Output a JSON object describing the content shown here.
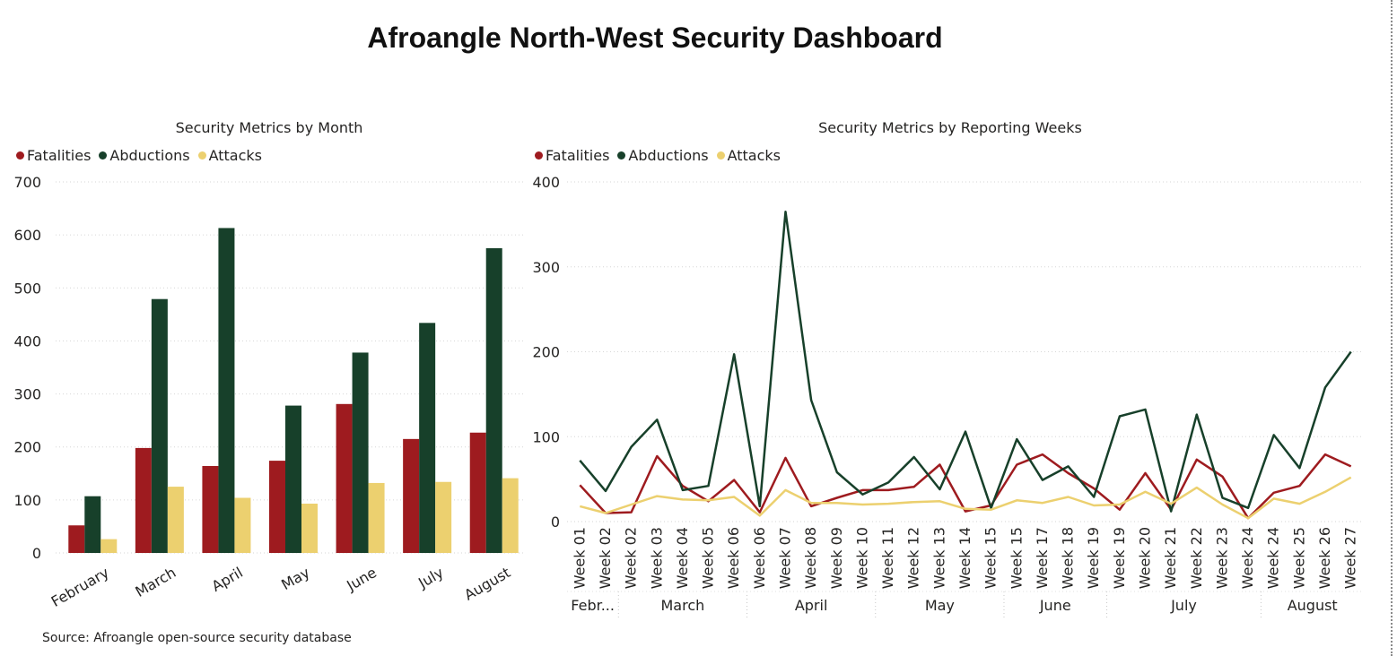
{
  "dashboard": {
    "title": "Afroangle North-West Security Dashboard",
    "source": "Source: Afroangle open-source security database"
  },
  "colors": {
    "fatalities": "#9e1b1f",
    "abductions": "#17402a",
    "attacks": "#ecd06f"
  },
  "chart_data": [
    {
      "type": "bar",
      "title": "Security Metrics by Month",
      "legend_position": "top-left",
      "grid": true,
      "ylim": [
        0,
        700
      ],
      "yticks": [
        0,
        100,
        200,
        300,
        400,
        500,
        600,
        700
      ],
      "categories": [
        "February",
        "March",
        "April",
        "May",
        "June",
        "July",
        "August"
      ],
      "series": [
        {
          "name": "Fatalities",
          "color": "#9e1b1f",
          "values": [
            52,
            198,
            164,
            174,
            281,
            215,
            227
          ]
        },
        {
          "name": "Abductions",
          "color": "#17402a",
          "values": [
            107,
            479,
            613,
            278,
            378,
            434,
            575
          ]
        },
        {
          "name": "Attacks",
          "color": "#ecd06f",
          "values": [
            26,
            125,
            104,
            93,
            132,
            134,
            141
          ]
        }
      ]
    },
    {
      "type": "line",
      "title": "Security Metrics by Reporting Weeks",
      "legend_position": "top-left",
      "grid": true,
      "ylim": [
        0,
        400
      ],
      "yticks": [
        0,
        100,
        200,
        300,
        400
      ],
      "x": [
        "Week 01",
        "Week 02",
        "Week 02",
        "Week 03",
        "Week 04",
        "Week 05",
        "Week 06",
        "Week 06",
        "Week 07",
        "Week 08",
        "Week 09",
        "Week 10",
        "Week 11",
        "Week 12",
        "Week 13",
        "Week 14",
        "Week 15",
        "Week 15",
        "Week 17",
        "Week 18",
        "Week 19",
        "Week 19",
        "Week 20",
        "Week 21",
        "Week 22",
        "Week 23",
        "Week 24",
        "Week 24",
        "Week 25",
        "Week 26",
        "Week 27"
      ],
      "month_groups": [
        {
          "label": "Febr...",
          "count": 2
        },
        {
          "label": "March",
          "count": 5
        },
        {
          "label": "April",
          "count": 5
        },
        {
          "label": "May",
          "count": 5
        },
        {
          "label": "June",
          "count": 4
        },
        {
          "label": "July",
          "count": 6
        },
        {
          "label": "August",
          "count": 4
        }
      ],
      "series": [
        {
          "name": "Fatalities",
          "color": "#9e1b1f",
          "values": [
            43,
            10,
            11,
            77,
            42,
            24,
            49,
            11,
            75,
            18,
            28,
            37,
            37,
            41,
            67,
            12,
            19,
            67,
            79,
            57,
            39,
            14,
            57,
            14,
            73,
            53,
            4,
            34,
            42,
            79,
            65
          ]
        },
        {
          "name": "Abductions",
          "color": "#17402a",
          "values": [
            72,
            36,
            88,
            120,
            37,
            42,
            197,
            18,
            365,
            143,
            58,
            32,
            46,
            76,
            38,
            106,
            16,
            97,
            49,
            65,
            29,
            124,
            132,
            12,
            126,
            28,
            16,
            102,
            63,
            158,
            200
          ]
        },
        {
          "name": "Attacks",
          "color": "#ecd06f",
          "values": [
            18,
            10,
            20,
            30,
            26,
            25,
            29,
            7,
            37,
            22,
            22,
            20,
            21,
            23,
            24,
            15,
            14,
            25,
            22,
            29,
            19,
            20,
            35,
            21,
            40,
            20,
            4,
            27,
            21,
            35,
            52
          ]
        }
      ]
    }
  ]
}
